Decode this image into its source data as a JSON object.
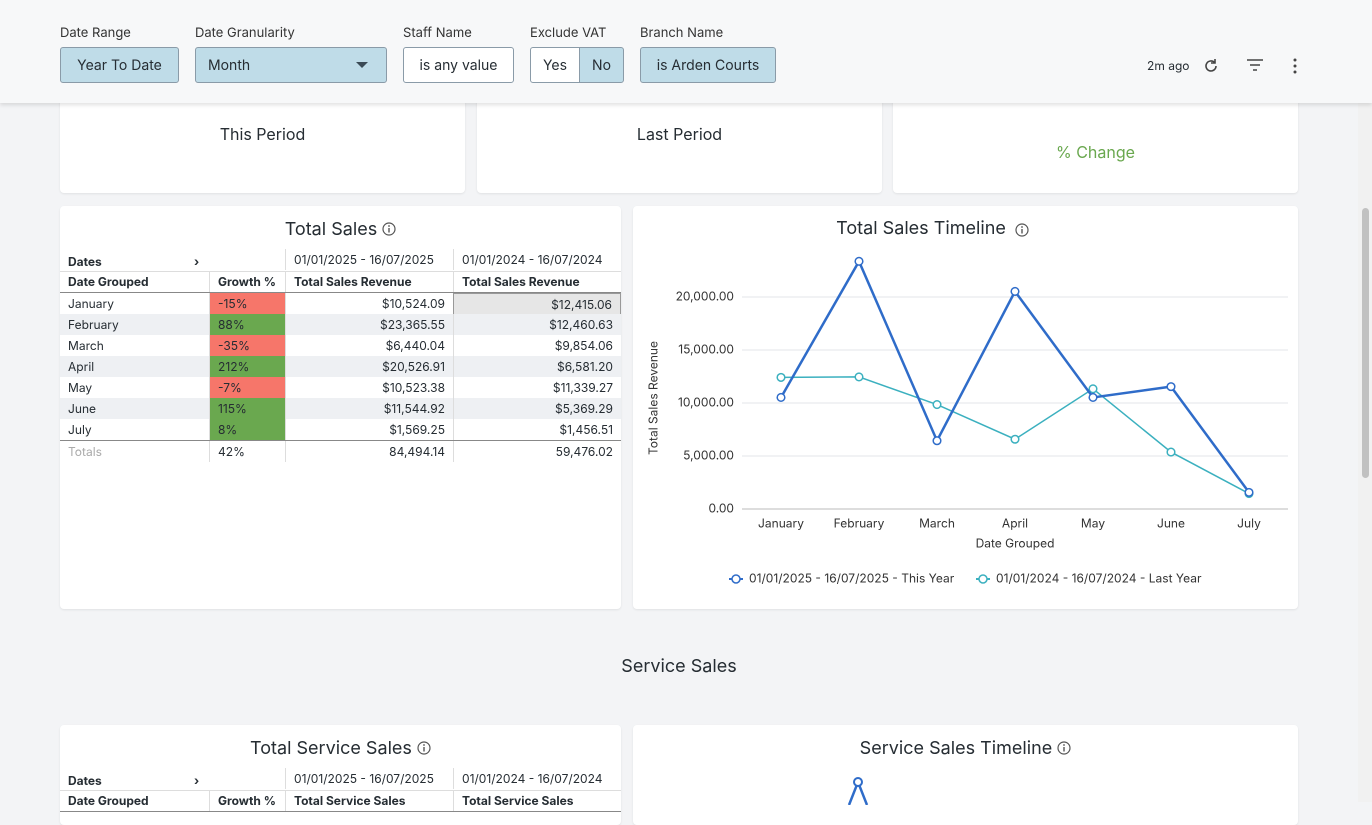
{
  "filters": [
    {
      "label": "Date Range",
      "value": "Year To Date"
    },
    {
      "label": "Date Granularity",
      "value": "Month"
    },
    {
      "label": "Staff Name",
      "value": "is any value"
    },
    {
      "label": "Exclude VAT",
      "options": [
        "Yes",
        "No"
      ]
    },
    {
      "label": "Branch Name",
      "value": "is Arden Courts"
    }
  ],
  "toolbar": {
    "updated": "2m ago"
  },
  "kpis": [
    {
      "label": "This Period"
    },
    {
      "label": "Last Period"
    },
    {
      "label": "% Change"
    }
  ],
  "total_sales_table": {
    "title": "Total Sales",
    "pivot_label": "Dates",
    "periods": [
      "01/01/2025 - 16/07/2025",
      "01/01/2024 - 16/07/2024"
    ],
    "columns": [
      "Date Grouped",
      "Growth %",
      "Total Sales Revenue",
      "Total Sales Revenue"
    ],
    "rows": [
      [
        "January",
        "-15%",
        "$10,524.09",
        "$12,415.06"
      ],
      [
        "February",
        "88%",
        "$23,365.55",
        "$12,460.63"
      ],
      [
        "March",
        "-35%",
        "$6,440.04",
        "$9,854.06"
      ],
      [
        "April",
        "212%",
        "$20,526.91",
        "$6,581.20"
      ],
      [
        "May",
        "-7%",
        "$10,523.38",
        "$11,339.27"
      ],
      [
        "June",
        "115%",
        "$11,544.92",
        "$5,369.29"
      ],
      [
        "July",
        "8%",
        "$1,569.25",
        "$1,456.51"
      ]
    ],
    "totals": [
      "Totals",
      "42%",
      "84,494.14",
      "59,476.02"
    ]
  },
  "chart_data": {
    "type": "line",
    "title": "Total Sales Timeline",
    "x_label": "Date Grouped",
    "y_label": "Total Sales Revenue",
    "categories": [
      "January",
      "February",
      "March",
      "April",
      "May",
      "June",
      "July"
    ],
    "series": [
      {
        "name": "01/01/2025 - 16/07/2025 - This Year",
        "color": "#2f6cc9",
        "values": [
          10524.09,
          23365.55,
          6440.04,
          20526.91,
          10523.38,
          11544.92,
          1569.25
        ]
      },
      {
        "name": "01/01/2024 - 16/07/2024 - Last Year",
        "color": "#3bb0bf",
        "values": [
          12415.06,
          12460.63,
          9854.06,
          6581.2,
          11339.27,
          5369.29,
          1456.51
        ]
      }
    ],
    "ylim": [
      0,
      24000
    ],
    "yticks": [
      {
        "value": 0,
        "label": "0.00"
      },
      {
        "value": 5000,
        "label": "5,000.00"
      },
      {
        "value": 10000,
        "label": "10,000.00"
      },
      {
        "value": 15000,
        "label": "15,000.00"
      },
      {
        "value": 20000,
        "label": "20,000.00"
      }
    ],
    "grid": true,
    "legend": "bottom"
  },
  "section": {
    "title": "Service Sales"
  },
  "service_table": {
    "title": "Total Service Sales",
    "pivot_label": "Dates",
    "periods": [
      "01/01/2025 - 16/07/2025",
      "01/01/2024 - 16/07/2024"
    ],
    "columns": [
      "Date Grouped",
      "Growth %",
      "Total Service Sales",
      "Total Service Sales"
    ]
  },
  "service_chart": {
    "title": "Service Sales Timeline"
  }
}
